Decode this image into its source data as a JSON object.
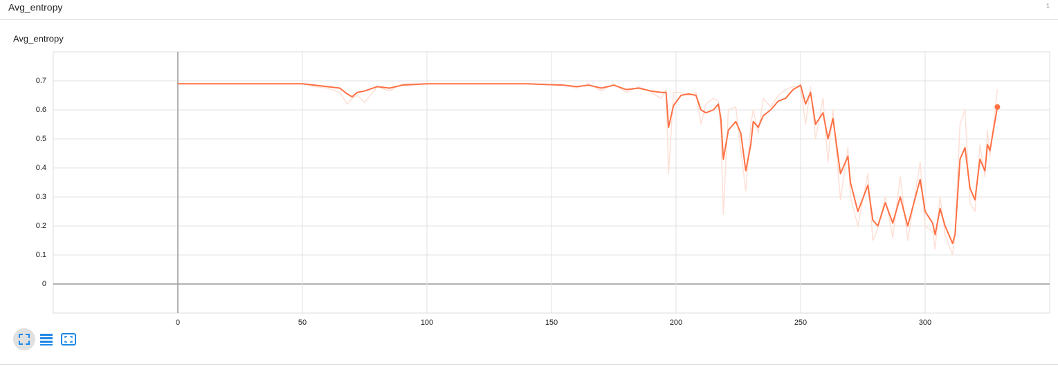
{
  "header": {
    "title": "Avg_entropy",
    "badge": "1"
  },
  "chart_data": {
    "type": "line",
    "title": "Avg_entropy",
    "x": [
      0,
      10,
      20,
      30,
      40,
      50,
      55,
      60,
      65,
      68,
      70,
      72,
      75,
      80,
      85,
      90,
      100,
      120,
      140,
      155,
      160,
      165,
      170,
      175,
      180,
      185,
      190,
      194,
      196,
      197,
      199,
      202,
      205,
      208,
      210,
      212,
      215,
      217,
      218,
      219,
      221,
      224,
      226,
      228,
      230,
      231,
      233,
      235,
      238,
      241,
      244,
      247,
      250,
      252,
      254,
      256,
      259,
      261,
      263,
      266,
      269,
      270,
      273,
      277,
      279,
      281,
      284,
      287,
      290,
      293,
      298,
      300,
      303,
      304,
      306,
      308,
      311,
      312,
      314,
      316,
      318,
      320,
      322,
      324,
      325,
      326,
      329
    ],
    "series": [
      {
        "color": "#fde0d6",
        "values": [
          0.69,
          0.69,
          0.69,
          0.69,
          0.69,
          0.69,
          0.68,
          0.675,
          0.66,
          0.62,
          0.64,
          0.65,
          0.625,
          0.68,
          0.665,
          0.69,
          0.69,
          0.69,
          0.69,
          0.685,
          0.675,
          0.69,
          0.665,
          0.69,
          0.66,
          0.68,
          0.66,
          0.64,
          0.67,
          0.38,
          0.66,
          0.66,
          0.65,
          0.66,
          0.55,
          0.62,
          0.64,
          0.63,
          0.53,
          0.24,
          0.6,
          0.61,
          0.46,
          0.32,
          0.55,
          0.6,
          0.52,
          0.64,
          0.61,
          0.65,
          0.67,
          0.68,
          0.68,
          0.55,
          0.68,
          0.5,
          0.64,
          0.42,
          0.6,
          0.29,
          0.47,
          0.3,
          0.2,
          0.38,
          0.15,
          0.19,
          0.3,
          0.16,
          0.37,
          0.15,
          0.42,
          0.2,
          0.18,
          0.12,
          0.3,
          0.17,
          0.1,
          0.17,
          0.55,
          0.6,
          0.28,
          0.25,
          0.48,
          0.37,
          0.53,
          0.44,
          0.67
        ]
      },
      {
        "color": "#ff7043",
        "values": [
          0.69,
          0.69,
          0.69,
          0.69,
          0.69,
          0.69,
          0.685,
          0.68,
          0.675,
          0.655,
          0.645,
          0.66,
          0.665,
          0.68,
          0.675,
          0.685,
          0.69,
          0.69,
          0.69,
          0.685,
          0.68,
          0.685,
          0.675,
          0.685,
          0.67,
          0.675,
          0.665,
          0.66,
          0.66,
          0.54,
          0.615,
          0.65,
          0.655,
          0.65,
          0.6,
          0.59,
          0.6,
          0.62,
          0.57,
          0.43,
          0.53,
          0.56,
          0.52,
          0.39,
          0.48,
          0.56,
          0.54,
          0.58,
          0.6,
          0.63,
          0.64,
          0.67,
          0.685,
          0.62,
          0.66,
          0.55,
          0.59,
          0.5,
          0.57,
          0.38,
          0.44,
          0.35,
          0.25,
          0.34,
          0.22,
          0.2,
          0.28,
          0.21,
          0.3,
          0.2,
          0.36,
          0.25,
          0.21,
          0.17,
          0.26,
          0.2,
          0.14,
          0.17,
          0.43,
          0.47,
          0.33,
          0.29,
          0.43,
          0.39,
          0.48,
          0.46,
          0.61
        ]
      }
    ],
    "xlim": [
      -50,
      350
    ],
    "ylim": [
      -0.1,
      0.8
    ],
    "xticks": [
      0,
      50,
      100,
      150,
      200,
      250,
      300
    ],
    "yticks": [
      0,
      0.1,
      0.2,
      0.3,
      0.4,
      0.5,
      0.6,
      0.7
    ],
    "grid": true
  }
}
